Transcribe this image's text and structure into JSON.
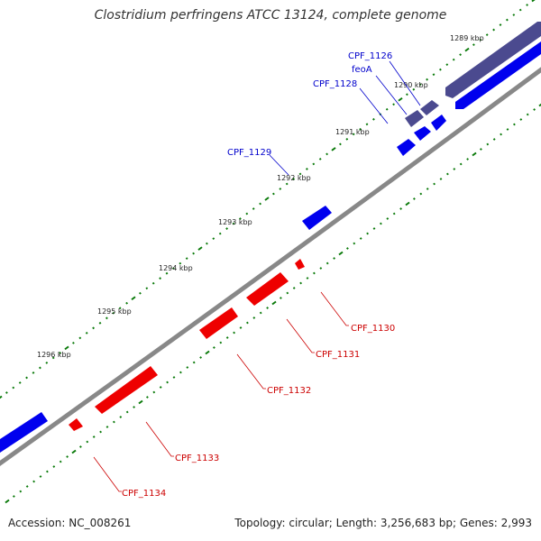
{
  "title": "Clostridium perfringens ATCC 13124, complete genome",
  "footer": {
    "accession": "Accession: NC_008261",
    "summary": "Topology: circular; Length: 3,256,683 bp; Genes: 2,993"
  },
  "colors": {
    "backbone": "#888888",
    "ticks": "#0a7a0a",
    "forward_gene": "#0000ee",
    "forward_operon": "#4b4a8f",
    "reverse_gene": "#ee0000",
    "forward_label": "#0000cc",
    "reverse_label": "#cc0000"
  },
  "tick_labels": [
    "1289 kbp",
    "1290 kbp",
    "1291 kbp",
    "1292 kbp",
    "1293 kbp",
    "1294 kbp",
    "1295 kbp",
    "1296 kbp"
  ],
  "forward_labels": [
    "CPF_1126",
    "feoA",
    "CPF_1128",
    "CPF_1129"
  ],
  "reverse_labels": [
    "CPF_1130",
    "CPF_1131",
    "CPF_1132",
    "CPF_1133",
    "CPF_1134"
  ]
}
